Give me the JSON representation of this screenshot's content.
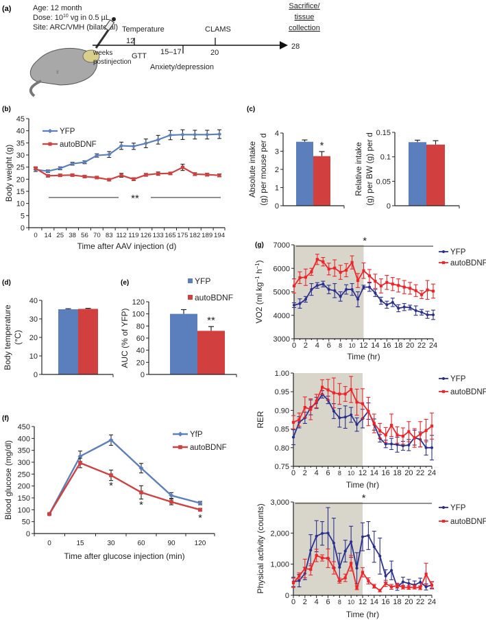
{
  "panel_labels": {
    "a": "(a)",
    "b": "(b)",
    "c": "(c)",
    "d": "(d)",
    "e": "(e)",
    "f": "(f)",
    "g": "(g)"
  },
  "timeline": {
    "age": "Age: 12 month",
    "dose_prefix": "Dose: 10",
    "dose_exp": "10",
    "dose_suffix": " vg in 0.5 µL",
    "site": "Site: ARC/VMH (bilateral)",
    "female_symbol": "♀",
    "temperature": "Temperature",
    "week_12": "12",
    "gtt": "GTT",
    "weeks": "weeks",
    "postinjection": "postinjection",
    "week_15_17": "15–17",
    "anxiety": "Anxiety/depression",
    "clams": "CLAMS",
    "week_20": "20",
    "week_28": "28",
    "end_1": "Sacrifice/",
    "end_2": "tissue",
    "end_3": "collection"
  },
  "colors": {
    "blue": "#5b7fbc",
    "red": "#d13f3f",
    "navy": "#2a2f8e",
    "bright_red": "#ef2428",
    "shade": "#d8d5cb"
  },
  "chart_data": [
    {
      "panel": "b",
      "type": "line",
      "xlabel": "Time after AAV injection (d)",
      "ylabel": "Body weight (g)",
      "categories": [
        "0",
        "14",
        "25",
        "38",
        "56",
        "70",
        "83",
        "112",
        "119",
        "126",
        "133",
        "165",
        "175",
        "182",
        "189",
        "194"
      ],
      "ylim": [
        0,
        45
      ],
      "yticks": [
        "0",
        "5",
        "10",
        "15",
        "20",
        "25",
        "30",
        "35",
        "40",
        "45"
      ],
      "legend": "top-left",
      "series": [
        {
          "name": "YFP",
          "color": "#5b7fbc",
          "marker": "diamond",
          "values": [
            24,
            23.3,
            24.5,
            26.4,
            27,
            29.8,
            30.2,
            33.8,
            33.6,
            34.8,
            36.3,
            38.2,
            38.4,
            38.4,
            38.4,
            38.6
          ],
          "errors": [
            0.8,
            0.5,
            0.6,
            0.6,
            0.6,
            0.7,
            1.2,
            1.5,
            1.3,
            1.8,
            1.8,
            1.9,
            2,
            1.8,
            1.8,
            1.8
          ]
        },
        {
          "name": "autoBDNF",
          "color": "#d13f3f",
          "marker": "square",
          "values": [
            24.5,
            21.4,
            21.6,
            21.7,
            21.1,
            20.7,
            19.8,
            21.6,
            20.0,
            21.8,
            22.3,
            22.4,
            24.9,
            22.1,
            21.9,
            21.6
          ],
          "errors": [
            0.6,
            0.5,
            0.5,
            0.5,
            0.5,
            0.5,
            0.5,
            0.8,
            0.6,
            0.6,
            0.7,
            0.5,
            1.3,
            0.6,
            0.6,
            0.6
          ]
        }
      ],
      "annotations": [
        "**"
      ]
    },
    {
      "panel": "c",
      "type": "bar",
      "ylabel": [
        "Absolute intake",
        "(g) per mouse per d"
      ],
      "ylim": [
        0,
        4
      ],
      "yticks": [
        "0",
        "1",
        "2",
        "3",
        "4"
      ],
      "values": [
        3.52,
        2.73
      ],
      "errors": [
        0.1,
        0.25
      ],
      "colors": [
        "#5b7fbc",
        "#d13f3f"
      ],
      "annotations": [
        "",
        "*"
      ]
    },
    {
      "panel": "c",
      "type": "bar",
      "ylabel": [
        "Relative intake",
        "(g) per BW (g) per d"
      ],
      "ylim": [
        0,
        0.15
      ],
      "yticks": [
        "0",
        "0.05",
        "0.1",
        "0.15"
      ],
      "values": [
        0.13,
        0.125
      ],
      "errors": [
        0.004,
        0.008
      ],
      "colors": [
        "#5b7fbc",
        "#d13f3f"
      ],
      "annotations": [
        "",
        ""
      ]
    },
    {
      "panel": "d",
      "type": "bar",
      "ylabel": [
        "Body temperature",
        "(°C)"
      ],
      "ylim": [
        0,
        40
      ],
      "yticks": [
        "0",
        "10",
        "20",
        "30",
        "40"
      ],
      "values": [
        35.2,
        35.4
      ],
      "errors": [
        0.3,
        0.3
      ],
      "colors": [
        "#5b7fbc",
        "#d13f3f"
      ],
      "annotations": [
        "",
        ""
      ]
    },
    {
      "panel": "e",
      "type": "bar",
      "ylabel": [
        "AUC (% of YFP)"
      ],
      "ylim": [
        0,
        120
      ],
      "yticks": [
        "0",
        "20",
        "40",
        "60",
        "80",
        "100",
        "120"
      ],
      "legend_labels": [
        "YFP",
        "autoBDNF"
      ],
      "legend": "top-right",
      "values": [
        100,
        72
      ],
      "errors": [
        7,
        7
      ],
      "colors": [
        "#5b7fbc",
        "#d13f3f"
      ],
      "annotations": [
        "",
        "**"
      ]
    },
    {
      "panel": "f",
      "type": "line",
      "xlabel": "Time after glucose injection (min)",
      "ylabel": "Blood glucose (mg/dl)",
      "categories": [
        "0",
        "15",
        "30",
        "60",
        "90",
        "120"
      ],
      "ylim": [
        0,
        450
      ],
      "yticks": [
        "0",
        "50",
        "100",
        "150",
        "200",
        "250",
        "300",
        "350",
        "400",
        "450"
      ],
      "legend": "top-right",
      "series": [
        {
          "name": "YfP",
          "color": "#5b7fbc",
          "marker": "diamond",
          "values": [
            82,
            325,
            393,
            275,
            160,
            128
          ],
          "errors": [
            4,
            22,
            22,
            20,
            12,
            7
          ]
        },
        {
          "name": "autoBDNF",
          "color": "#d13f3f",
          "marker": "square",
          "values": [
            82,
            297,
            245,
            173,
            133,
            100
          ],
          "errors": [
            4,
            20,
            22,
            28,
            12,
            5
          ]
        }
      ],
      "annotations": [
        "",
        "",
        "*",
        "*",
        "",
        "*"
      ]
    },
    {
      "panel": "g",
      "type": "line",
      "xlabel": "Time (hr)",
      "ylabel_main": "VO2 (ml kg",
      "ylabel_exp1": "−1",
      "ylabel_mid": " h",
      "ylabel_exp2": "−1",
      "ylabel_end": ")",
      "x": [
        0,
        1,
        2,
        3,
        4,
        5,
        6,
        7,
        8,
        9,
        10,
        11,
        12,
        13,
        14,
        15,
        16,
        17,
        18,
        19,
        20,
        21,
        22,
        23,
        24
      ],
      "xlim": [
        0,
        24
      ],
      "xticks": [
        "0",
        "2",
        "4",
        "6",
        "8",
        "10",
        "12",
        "14",
        "16",
        "18",
        "20",
        "22",
        "24"
      ],
      "ylim": [
        3000,
        7000
      ],
      "yticks": [
        "3000",
        "4000",
        "5000",
        "6000",
        "7000"
      ],
      "dark_phase": [
        0,
        12
      ],
      "legend": "top-right",
      "series": [
        {
          "name": "YFP",
          "color": "#2a2f8e",
          "marker": "circle",
          "values": [
            4430,
            4500,
            4680,
            5100,
            5270,
            5330,
            5100,
            5050,
            4800,
            5100,
            5100,
            4680,
            5200,
            5200,
            4950,
            4620,
            4450,
            4550,
            4300,
            4350,
            4330,
            4200,
            4130,
            4020,
            4020
          ],
          "errors": [
            100,
            200,
            120,
            250,
            120,
            120,
            180,
            300,
            200,
            200,
            250,
            320,
            80,
            180,
            150,
            150,
            150,
            180,
            150,
            150,
            100,
            200,
            120,
            150,
            200
          ]
        },
        {
          "name": "autoBDNF",
          "color": "#ef2428",
          "marker": "square",
          "values": [
            5250,
            5600,
            5620,
            5850,
            6380,
            6280,
            5970,
            6010,
            5830,
            5920,
            6250,
            5480,
            5900,
            5680,
            5450,
            5250,
            5400,
            5330,
            5270,
            5200,
            5150,
            5050,
            4880,
            5080,
            5030
          ],
          "errors": [
            300,
            250,
            350,
            150,
            220,
            180,
            250,
            350,
            300,
            280,
            280,
            300,
            330,
            270,
            300,
            300,
            300,
            280,
            280,
            280,
            250,
            250,
            170,
            400,
            300
          ]
        }
      ],
      "annotations": [
        "*"
      ]
    },
    {
      "panel": "g",
      "type": "line",
      "xlabel": "Time (hr)",
      "ylabel": "RER",
      "x": [
        0,
        1,
        2,
        3,
        4,
        5,
        6,
        7,
        8,
        9,
        10,
        11,
        12,
        13,
        14,
        15,
        16,
        17,
        18,
        19,
        20,
        21,
        22,
        23,
        24
      ],
      "xlim": [
        0,
        24
      ],
      "xticks": [
        "0",
        "2",
        "4",
        "6",
        "8",
        "10",
        "12",
        "14",
        "16",
        "18",
        "20",
        "22",
        "24"
      ],
      "ylim": [
        0.75,
        1.0
      ],
      "yticks": [
        "0.75",
        "0.80",
        "0.85",
        "0.90",
        "0.95",
        "1.00"
      ],
      "dark_phase": [
        0,
        12
      ],
      "legend": "top-right",
      "series": [
        {
          "name": "YFP",
          "color": "#2a2f8e",
          "marker": "circle",
          "values": [
            0.828,
            0.868,
            0.88,
            0.908,
            0.92,
            0.943,
            0.928,
            0.898,
            0.88,
            0.882,
            0.888,
            0.862,
            0.878,
            0.898,
            0.862,
            0.825,
            0.81,
            0.81,
            0.808,
            0.805,
            0.807,
            0.827,
            0.822,
            0.8,
            0.8
          ],
          "errors": [
            0.02,
            0.015,
            0.015,
            0.02,
            0.015,
            0.01,
            0.01,
            0.02,
            0.025,
            0.03,
            0.02,
            0.018,
            0.025,
            0.022,
            0.015,
            0.01,
            0.01,
            0.015,
            0.02,
            0.012,
            0.015,
            0.02,
            0.02,
            0.02,
            0.033
          ]
        },
        {
          "name": "autoBDNF",
          "color": "#ef2428",
          "marker": "square",
          "values": [
            0.868,
            0.875,
            0.908,
            0.903,
            0.925,
            0.962,
            0.955,
            0.947,
            0.944,
            0.944,
            0.956,
            0.922,
            0.918,
            0.897,
            0.865,
            0.845,
            0.834,
            0.86,
            0.834,
            0.831,
            0.843,
            0.826,
            0.836,
            0.846,
            0.858
          ],
          "errors": [
            0.018,
            0.018,
            0.028,
            0.028,
            0.018,
            0.02,
            0.028,
            0.04,
            0.028,
            0.02,
            0.035,
            0.035,
            0.04,
            0.038,
            0.025,
            0.02,
            0.02,
            0.03,
            0.022,
            0.022,
            0.027,
            0.025,
            0.034,
            0.03,
            0.035
          ]
        }
      ]
    },
    {
      "panel": "g",
      "type": "line",
      "xlabel": "Time (hr)",
      "ylabel": "Physical activity (counts)",
      "x": [
        0,
        1,
        2,
        3,
        4,
        5,
        6,
        7,
        8,
        9,
        10,
        11,
        12,
        13,
        14,
        15,
        16,
        17,
        18,
        19,
        20,
        21,
        22,
        23,
        24
      ],
      "xlim": [
        0,
        24
      ],
      "xticks": [
        "0",
        "2",
        "4",
        "6",
        "8",
        "10",
        "12",
        "14",
        "16",
        "18",
        "20",
        "22",
        "24"
      ],
      "ylim": [
        0,
        3000
      ],
      "yticks": [
        "0",
        "1,000",
        "2,000",
        "3,000"
      ],
      "dark_phase": [
        0,
        12
      ],
      "legend": "top-right",
      "series": [
        {
          "name": "YFP",
          "color": "#2a2f8e",
          "marker": "circle",
          "values": [
            430,
            470,
            700,
            1450,
            1900,
            1990,
            2000,
            1680,
            900,
            1420,
            1720,
            870,
            1880,
            1920,
            1560,
            1260,
            620,
            800,
            260,
            430,
            380,
            330,
            420,
            270,
            330
          ],
          "errors": [
            150,
            200,
            200,
            500,
            500,
            380,
            820,
            800,
            450,
            350,
            500,
            500,
            450,
            450,
            500,
            580,
            200,
            300,
            100,
            150,
            130,
            130,
            130,
            100,
            100
          ]
        },
        {
          "name": "autoBDNF",
          "color": "#ef2428",
          "marker": "square",
          "values": [
            400,
            620,
            860,
            830,
            1280,
            1200,
            1190,
            880,
            470,
            560,
            1030,
            240,
            740,
            460,
            290,
            150,
            380,
            270,
            310,
            260,
            250,
            260,
            240,
            680,
            320
          ],
          "errors": [
            150,
            100,
            300,
            180,
            200,
            100,
            300,
            200,
            80,
            120,
            250,
            60,
            150,
            100,
            60,
            40,
            100,
            80,
            80,
            60,
            60,
            60,
            60,
            350,
            120
          ]
        }
      ],
      "annotations": [
        "*"
      ]
    }
  ]
}
